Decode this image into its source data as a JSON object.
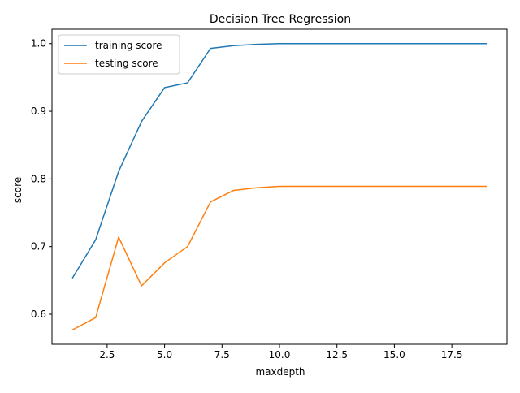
{
  "chart_data": {
    "type": "line",
    "title": "Decision Tree Regression",
    "xlabel": "maxdepth",
    "ylabel": "score",
    "xlim": [
      0.1,
      19.9
    ],
    "ylim": [
      0.5556,
      1.0213
    ],
    "x_ticks": [
      2.5,
      5.0,
      7.5,
      10.0,
      12.5,
      15.0,
      17.5
    ],
    "x_tick_labels": [
      "2.5",
      "5.0",
      "7.5",
      "10.0",
      "12.5",
      "15.0",
      "17.5"
    ],
    "y_ticks": [
      0.6,
      0.7,
      0.8,
      0.9,
      1.0
    ],
    "y_tick_labels": [
      "0.6",
      "0.7",
      "0.8",
      "0.9",
      "1.0"
    ],
    "grid": false,
    "legend_position": "top-left",
    "x": [
      1,
      2,
      3,
      4,
      5,
      6,
      7,
      8,
      9,
      10,
      11,
      12,
      13,
      14,
      15,
      16,
      17,
      18,
      19
    ],
    "series": [
      {
        "name": "training score",
        "color": "#1f77b4",
        "values": [
          0.654,
          0.71,
          0.811,
          0.885,
          0.935,
          0.942,
          0.993,
          0.997,
          0.999,
          1.0,
          1.0,
          1.0,
          1.0,
          1.0,
          1.0,
          1.0,
          1.0,
          1.0,
          1.0
        ]
      },
      {
        "name": "testing score",
        "color": "#ff7f0e",
        "values": [
          0.577,
          0.595,
          0.714,
          0.642,
          0.676,
          0.7,
          0.766,
          0.783,
          0.787,
          0.789,
          0.789,
          0.789,
          0.789,
          0.789,
          0.789,
          0.789,
          0.789,
          0.789,
          0.789
        ]
      }
    ]
  }
}
